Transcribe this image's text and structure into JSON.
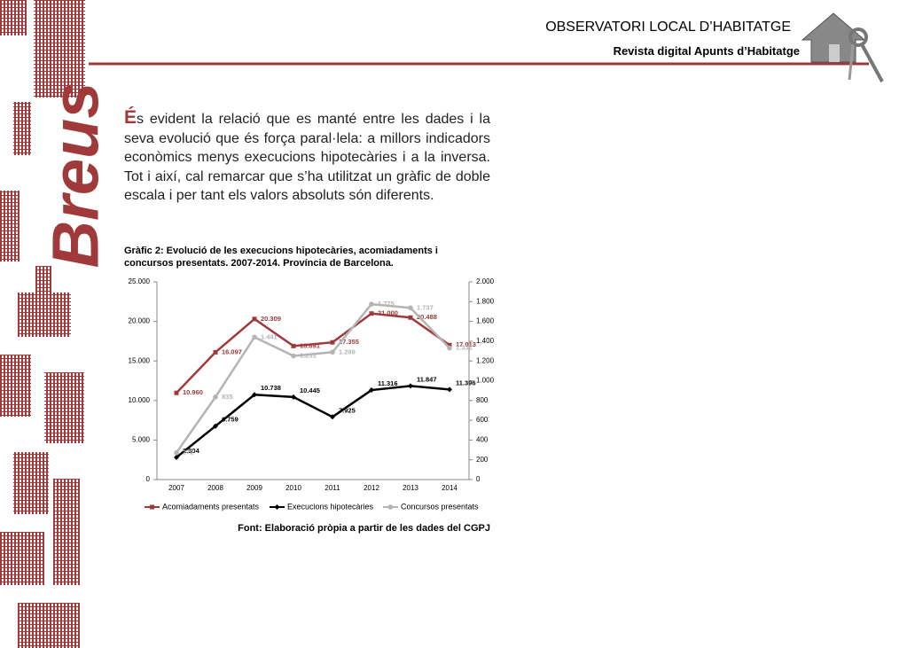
{
  "header": {
    "title": "OBSERVATORI LOCAL D’HABITATGE",
    "subtitle": "Revista digital Apunts d’Habitatge"
  },
  "sidebar": {
    "label": "Breus"
  },
  "body": {
    "dropcap": "É",
    "text": "s evident la relació que es manté entre les dades i la seva evolució que és força paral·lela: a millors indicadors econòmics menys execucions hipotecàries i a la inversa. Tot i així, cal remarcar que s’ha utilitzat un gràfic de doble escala i per tant els valors absoluts són diferents."
  },
  "chart_data": {
    "type": "line",
    "title": "Gràfic 2: Evolució de les execucions hipotecàries, acomiadaments i concursos presentats. 2007-2014. Província de Barcelona.",
    "categories": [
      "2007",
      "2008",
      "2009",
      "2010",
      "2011",
      "2012",
      "2013",
      "2014"
    ],
    "series": [
      {
        "name": "Acomiadaments presentats",
        "color": "#a0393a",
        "marker": "square",
        "values": [
          10960,
          16097,
          20309,
          16891,
          17355,
          21000,
          20488,
          17013
        ],
        "value_labels": [
          "10.960",
          "16.097",
          "20.309",
          "16.891",
          "17.355",
          "21.000",
          "20.488",
          "17.013"
        ]
      },
      {
        "name": "Execucions hipotecàries",
        "color": "#000000",
        "marker": "diamond",
        "values": [
          2804,
          6759,
          10738,
          10445,
          7925,
          11316,
          11847,
          11396
        ],
        "value_labels": [
          "2.804",
          "6.759",
          "10.738",
          "10.445",
          "7.925",
          "11.316",
          "11.847",
          "11.396"
        ]
      },
      {
        "name": "Concursos presentats",
        "color": "#b4b4b4",
        "marker": "circle",
        "axis": "y2",
        "values": [
          272,
          835,
          1441,
          1251,
          1289,
          1775,
          1737,
          1331
        ],
        "value_labels": [
          "272",
          "835",
          "1.441",
          "1.251",
          "1.289",
          "1.775",
          "1.737",
          "1.331"
        ]
      }
    ],
    "ylim": [
      0,
      25000
    ],
    "yticks": [
      0,
      {
        "value": 5000,
        "label": "5.000"
      },
      {
        "value": 10000,
        "label": "10.000"
      },
      {
        "value": 15000,
        "label": "15.000"
      },
      {
        "value": 20000,
        "label": "20.000"
      },
      {
        "value": 25000,
        "label": "25.000"
      }
    ],
    "y2lim": [
      0,
      2000
    ],
    "y2ticks": [
      0,
      200,
      400,
      600,
      800,
      {
        "value": 1000,
        "label": "1.000"
      },
      {
        "value": 1200,
        "label": "1.200"
      },
      {
        "value": 1400,
        "label": "1.400"
      },
      {
        "value": 1600,
        "label": "1.600"
      },
      {
        "value": 1800,
        "label": "1.800"
      },
      {
        "value": 2000,
        "label": "2.000"
      }
    ],
    "grid": false,
    "legend": "bottom",
    "source": "Font: Elaboració pròpia a partir de les dades del CGPJ"
  }
}
